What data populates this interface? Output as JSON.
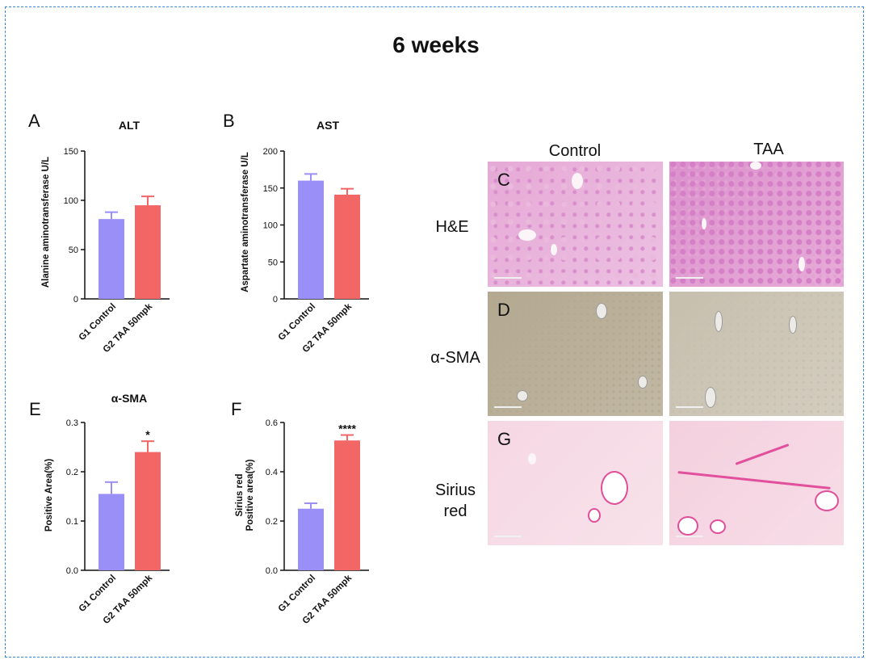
{
  "title": "6 weeks",
  "colors": {
    "frame": "#3b87d6",
    "control_bar": "#9a8ef7",
    "control_error": "#9a8ef7",
    "taa_bar": "#f26666",
    "taa_error": "#f26666",
    "axis": "#111111"
  },
  "chart_data": [
    {
      "panel": "A",
      "type": "bar",
      "title": "ALT",
      "ylabel": "Alanine aminotransferase U/L",
      "xlabel": "",
      "categories": [
        "G1 Control",
        "G2 TAA 50mpk"
      ],
      "values": [
        81,
        95
      ],
      "errors": [
        7,
        9
      ],
      "ylim": [
        0,
        150
      ],
      "yticks": [
        "0",
        "50",
        "100",
        "150"
      ],
      "significance": [
        "",
        ""
      ]
    },
    {
      "panel": "B",
      "type": "bar",
      "title": "AST",
      "ylabel": "Aspartate aminotransferase U/L",
      "xlabel": "",
      "categories": [
        "G1 Control",
        "G2 TAA 50mpk"
      ],
      "values": [
        160,
        141
      ],
      "errors": [
        9,
        8
      ],
      "ylim": [
        0,
        200
      ],
      "yticks": [
        "0",
        "50",
        "100",
        "150",
        "200"
      ],
      "significance": [
        "",
        ""
      ]
    },
    {
      "panel": "E",
      "type": "bar",
      "title": "α-SMA",
      "ylabel": "Positive Area(%)",
      "xlabel": "",
      "categories": [
        "G1 Control",
        "G2 TAA 50mpk"
      ],
      "values": [
        0.155,
        0.24
      ],
      "errors": [
        0.024,
        0.022
      ],
      "ylim": [
        0,
        0.3
      ],
      "yticks": [
        "0.0",
        "0.1",
        "0.2",
        "0.3"
      ],
      "significance": [
        "",
        "*"
      ]
    },
    {
      "panel": "F",
      "type": "bar",
      "title": "",
      "ylabel": "Sirius red Positive area(%)",
      "ylabel_lines": [
        "Sirius red",
        "Positive area(%)"
      ],
      "xlabel": "",
      "categories": [
        "G1 Control",
        "G2 TAA 50mpk"
      ],
      "values": [
        0.25,
        0.527
      ],
      "errors": [
        0.022,
        0.022
      ],
      "ylim": [
        0,
        0.6
      ],
      "yticks": [
        "0.0",
        "0.2",
        "0.4",
        "0.6"
      ],
      "significance": [
        "",
        "****"
      ]
    }
  ],
  "histology": {
    "columns": [
      "Control",
      "TAA"
    ],
    "rows": [
      {
        "panel": "C",
        "label": "H&E"
      },
      {
        "panel": "D",
        "label": "α-SMA"
      },
      {
        "panel": "G",
        "label_lines": [
          "Sirius",
          "red"
        ]
      }
    ]
  }
}
